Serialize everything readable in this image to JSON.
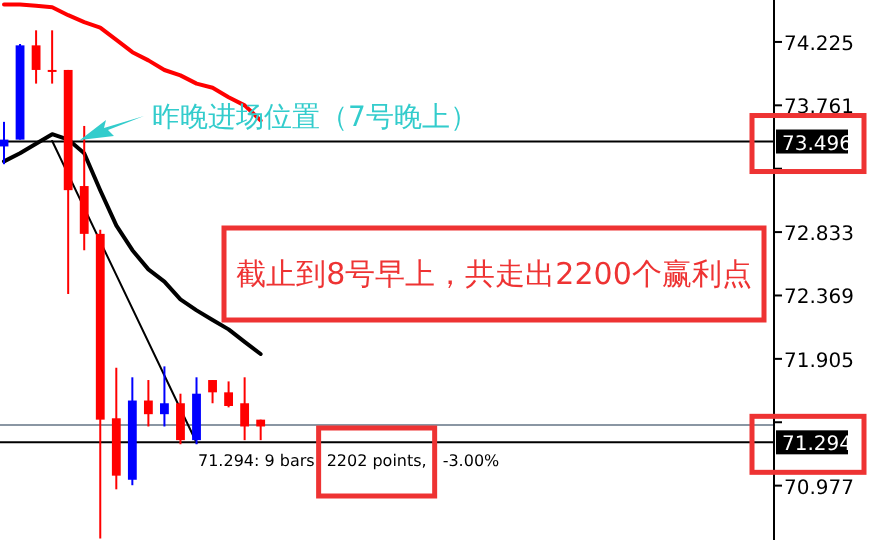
{
  "chart_data": {
    "type": "candlestick",
    "categories": [
      null,
      null,
      null,
      null,
      null,
      null,
      null,
      null,
      null,
      null,
      null,
      null,
      null,
      null,
      null,
      null,
      null,
      null,
      null,
      null,
      null,
      null,
      null,
      null,
      null,
      null,
      null,
      null,
      null,
      null,
      null,
      null,
      null,
      null,
      null,
      null,
      null,
      null,
      null,
      null,
      null,
      null,
      null,
      null,
      null,
      null,
      null,
      null
    ],
    "ohlc": [
      [
        73.46,
        73.64,
        73.33,
        73.51
      ],
      [
        73.51,
        74.21,
        73.51,
        74.2
      ],
      [
        74.2,
        74.31,
        73.92,
        74.02
      ],
      [
        74.02,
        74.31,
        73.92,
        74.01
      ],
      [
        74.02,
        74.02,
        72.38,
        73.14
      ],
      [
        73.17,
        73.61,
        72.7,
        72.82
      ],
      [
        72.82,
        72.85,
        70.59,
        71.46
      ],
      [
        71.47,
        71.84,
        70.95,
        71.05
      ],
      [
        71.02,
        71.77,
        70.98,
        71.6
      ],
      [
        71.6,
        71.75,
        71.41,
        71.5
      ],
      [
        71.5,
        71.85,
        71.41,
        71.58
      ],
      [
        71.58,
        71.65,
        71.28,
        71.31
      ],
      [
        71.31,
        71.77,
        71.28,
        71.65
      ],
      [
        71.75,
        71.75,
        71.58,
        71.66
      ],
      [
        71.66,
        71.74,
        71.55,
        71.56
      ],
      [
        71.58,
        71.77,
        71.31,
        71.41
      ],
      [
        71.46,
        71.46,
        71.31,
        71.41
      ],
      null,
      null,
      null,
      null,
      null,
      null,
      null,
      null,
      null,
      null,
      null,
      null,
      null,
      null,
      null,
      null,
      null,
      null,
      null,
      null,
      null,
      null,
      null,
      null,
      null,
      null,
      null,
      null,
      null,
      null,
      null
    ],
    "colors": [
      "#0000ff",
      "#0000ff",
      "#ff0000",
      "#ff0000",
      "#ff0000",
      "#ff0000",
      "#ff0000",
      "#ff0000",
      "#0000ff",
      "#ff0000",
      "#0000ff",
      "#ff0000",
      "#0000ff",
      "#ff0000",
      "#ff0000",
      "#ff0000",
      "#ff0000",
      null,
      null,
      null,
      null,
      null,
      null,
      null,
      null,
      null,
      null,
      null,
      null,
      null,
      null,
      null,
      null,
      null,
      null,
      null,
      null,
      null,
      null,
      null,
      null,
      null,
      null,
      null,
      null,
      null,
      null,
      null
    ],
    "series": [
      {
        "type": "line",
        "color": "#ff0000",
        "values": [
          74.5,
          74.5,
          74.49,
          74.48,
          74.42,
          74.37,
          74.33,
          74.24,
          74.15,
          74.09,
          74.02,
          73.98,
          73.92,
          73.89,
          73.82,
          73.76,
          73.65,
          null,
          null,
          null,
          null,
          null,
          null,
          null,
          null,
          null,
          null,
          null,
          null,
          null,
          null,
          null,
          null,
          null,
          null,
          null,
          null,
          null,
          null,
          null,
          null,
          null,
          null,
          null,
          null,
          null,
          null,
          null
        ]
      },
      {
        "type": "line",
        "color": "#000000",
        "values": [
          73.35,
          73.41,
          73.48,
          73.55,
          73.51,
          73.41,
          73.14,
          72.88,
          72.7,
          72.56,
          72.47,
          72.34,
          72.26,
          72.19,
          72.12,
          72.03,
          71.94,
          null,
          null,
          null,
          null,
          null,
          null,
          null,
          null,
          null,
          null,
          null,
          null,
          null,
          null,
          null,
          null,
          null,
          null,
          null,
          null,
          null,
          null,
          null,
          null,
          null,
          null,
          null,
          null,
          null,
          null,
          null
        ]
      },
      {
        "type": "line",
        "color": "#000000",
        "values": [
          null,
          null,
          null,
          73.5,
          null,
          null,
          null,
          null,
          null,
          null,
          null,
          null,
          71.29,
          null,
          null,
          null,
          null,
          null,
          null,
          null,
          null,
          null,
          null,
          null,
          null,
          null,
          null,
          null,
          null,
          null,
          null,
          null,
          null,
          null,
          null,
          null,
          null,
          null,
          null,
          null,
          null,
          null,
          null,
          null,
          null,
          null,
          null,
          null
        ]
      }
    ],
    "ylim": [
      70.579,
      74.532
    ],
    "yticks": [
      74.225,
      73.761,
      {
        "value": 73.297,
        "label": null
      },
      72.833,
      72.369,
      71.905,
      {
        "value": 71.441,
        "label": null
      },
      70.977
    ],
    "ref_lines": [
      {
        "axis": "y",
        "value": 73.496,
        "label": "73.496",
        "color": "#000000"
      },
      {
        "axis": "y",
        "value": 71.294,
        "label": "71.294",
        "color": "#000000"
      },
      {
        "axis": "y",
        "value": 71.42,
        "color": "#8a96a3"
      }
    ],
    "annotations": [
      "昨晚进场位置（7号晚上）",
      "截止到8号早上，共走出2200个赢利点",
      "71.294: 9 bars",
      "2202 points,",
      "-3.00%"
    ],
    "tick_labels": "y",
    "grid": false
  }
}
